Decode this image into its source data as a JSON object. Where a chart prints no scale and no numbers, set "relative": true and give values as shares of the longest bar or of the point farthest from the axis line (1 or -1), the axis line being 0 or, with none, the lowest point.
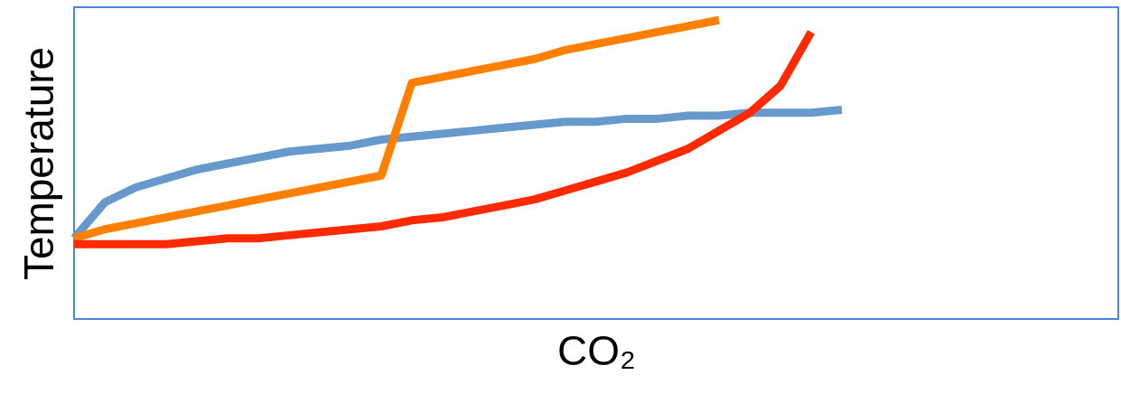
{
  "chart_data": {
    "type": "line",
    "relative": true,
    "xlabel": "CO₂",
    "ylabel": "Temperature",
    "tick_labels": false,
    "grid": false,
    "line_style": "solid",
    "marker": "none",
    "categories": [
      null,
      null,
      null,
      null,
      null,
      null,
      null,
      null,
      null,
      null,
      null,
      null,
      null,
      null,
      null,
      null,
      null,
      null,
      null,
      null,
      null,
      null,
      null,
      null,
      null,
      null,
      null,
      null,
      null,
      null,
      null,
      null,
      null,
      null,
      null
    ],
    "series": [
      {
        "color": "#6699cc",
        "values": [
          0.27,
          0.39,
          0.44,
          0.47,
          0.5,
          0.52,
          0.54,
          0.56,
          0.57,
          0.58,
          0.6,
          0.61,
          0.62,
          0.63,
          0.64,
          0.65,
          0.66,
          0.66,
          0.67,
          0.67,
          0.68,
          0.68,
          0.69,
          0.69,
          0.69,
          0.7,
          null,
          null,
          null,
          null,
          null,
          null,
          null,
          null,
          null
        ]
      },
      {
        "color": "#ff8000",
        "values": [
          0.27,
          0.3,
          0.32,
          0.34,
          0.36,
          0.38,
          0.4,
          0.42,
          0.44,
          0.46,
          0.48,
          0.79,
          0.81,
          0.83,
          0.85,
          0.87,
          0.9,
          0.92,
          0.94,
          0.96,
          0.98,
          1.0,
          null,
          null,
          null,
          null,
          null,
          null,
          null,
          null,
          null,
          null,
          null,
          null,
          null
        ]
      },
      {
        "color": "#ff2a00",
        "values": [
          0.25,
          0.25,
          0.25,
          0.25,
          0.26,
          0.27,
          0.27,
          0.28,
          0.29,
          0.3,
          0.31,
          0.33,
          0.34,
          0.36,
          0.38,
          0.4,
          0.43,
          0.46,
          0.49,
          0.53,
          0.57,
          0.63,
          0.69,
          0.78,
          0.96,
          null,
          null,
          null,
          null,
          null,
          null,
          null,
          null,
          null,
          null
        ]
      }
    ]
  }
}
